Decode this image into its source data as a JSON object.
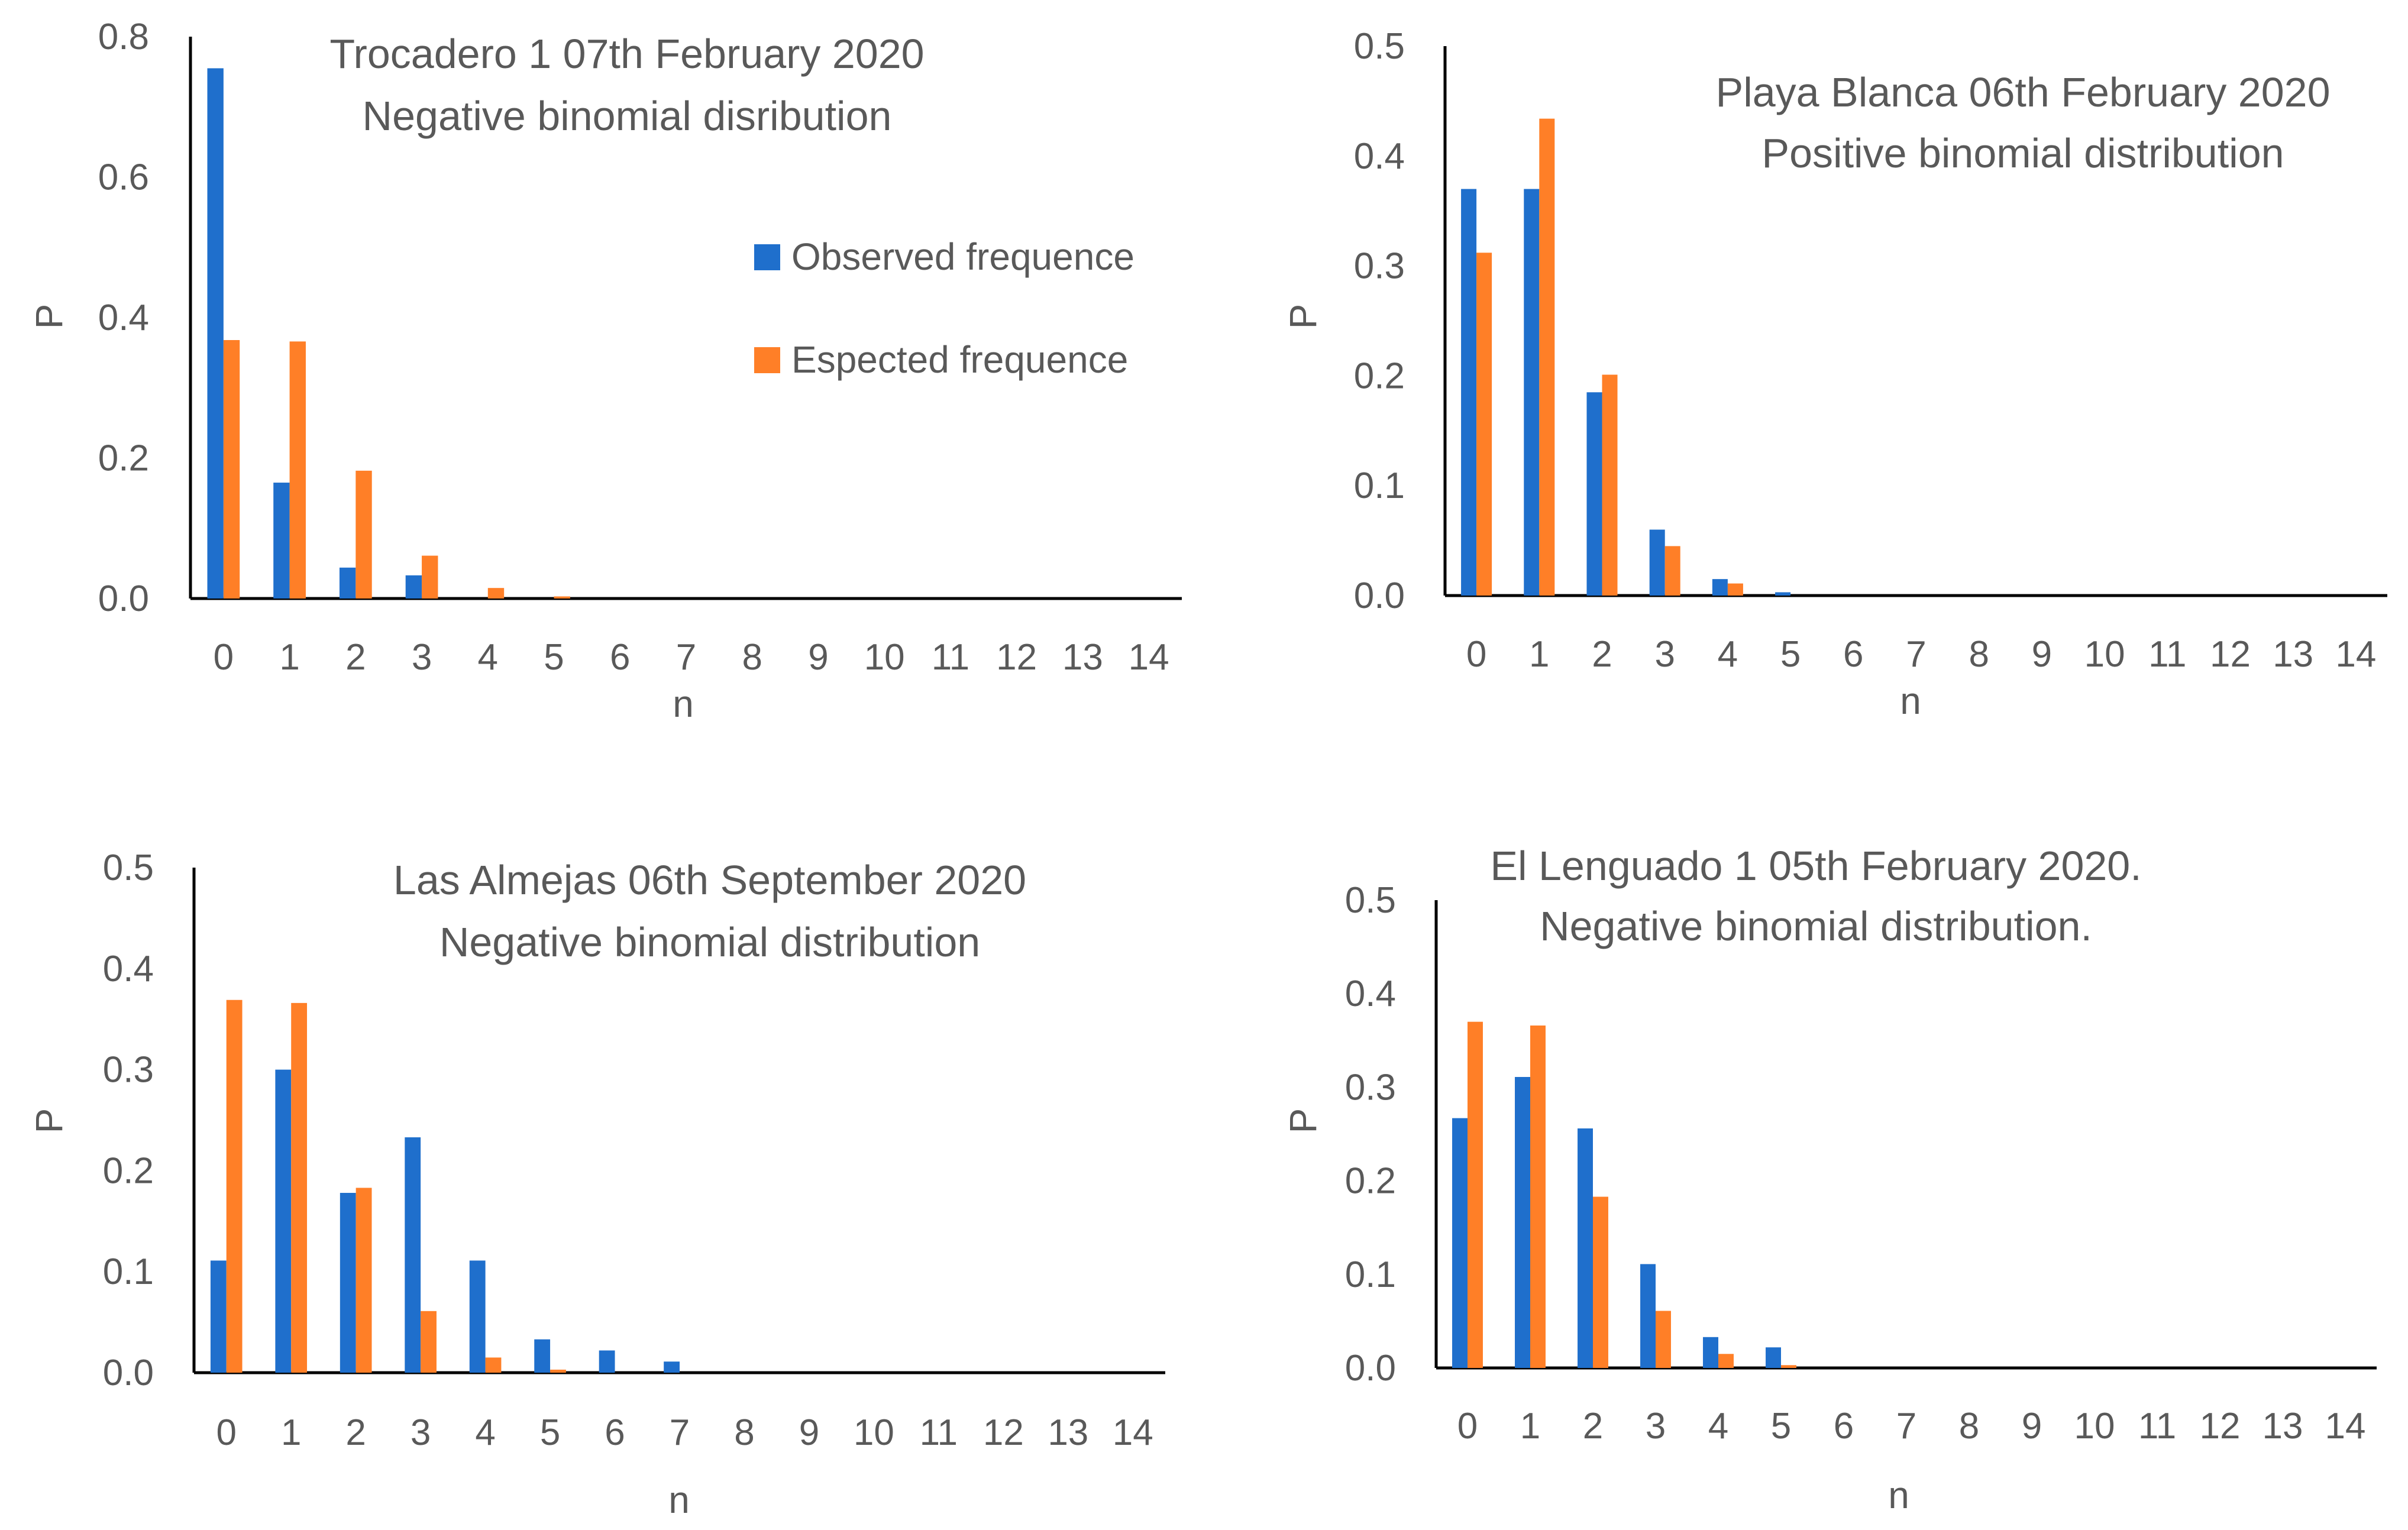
{
  "colors": {
    "observed": "#1f6fcc",
    "expected": "#ff7f27",
    "axis": "#000000",
    "text": "#595959"
  },
  "legend": {
    "observed": "Observed frequence",
    "expected": "Espected frequence"
  },
  "chart_data": [
    {
      "type": "bar",
      "title": [
        "Trocadero 1 07th February 2020",
        "Negative binomial disribution"
      ],
      "xlabel": "n",
      "ylabel": "P",
      "ylim": [
        0,
        0.8
      ],
      "yticks": [
        "0.0",
        "0.2",
        "0.4",
        "0.6",
        "0.8"
      ],
      "categories": [
        "0",
        "1",
        "2",
        "3",
        "4",
        "5",
        "6",
        "7",
        "8",
        "9",
        "10",
        "11",
        "12",
        "13",
        "14"
      ],
      "series": [
        {
          "name": "Observed frequence",
          "values": [
            0.755,
            0.165,
            0.044,
            0.033,
            0,
            0,
            0,
            0,
            0,
            0,
            0,
            0,
            0,
            0,
            0
          ]
        },
        {
          "name": "Espected frequence",
          "values": [
            0.368,
            0.366,
            0.182,
            0.061,
            0.015,
            0.003,
            0,
            0,
            0,
            0,
            0,
            0,
            0,
            0,
            0
          ]
        }
      ],
      "legend_position": "top-right"
    },
    {
      "type": "bar",
      "title": [
        "Playa Blanca 06th February 2020",
        "Positive binomial distribution"
      ],
      "xlabel": "n",
      "ylabel": "P",
      "ylim": [
        0,
        0.5
      ],
      "yticks": [
        "0.0",
        "0.1",
        "0.2",
        "0.3",
        "0.4",
        "0.5"
      ],
      "categories": [
        "0",
        "1",
        "2",
        "3",
        "4",
        "5",
        "6",
        "7",
        "8",
        "9",
        "10",
        "11",
        "12",
        "13",
        "14"
      ],
      "series": [
        {
          "name": "Observed frequence",
          "values": [
            0.37,
            0.37,
            0.185,
            0.06,
            0.015,
            0.003,
            0,
            0,
            0,
            0,
            0,
            0,
            0,
            0,
            0
          ]
        },
        {
          "name": "Espected frequence",
          "values": [
            0.312,
            0.434,
            0.201,
            0.045,
            0.011,
            0,
            0,
            0,
            0,
            0,
            0,
            0,
            0,
            0,
            0
          ]
        }
      ]
    },
    {
      "type": "bar",
      "title": [
        "Las Almejas 06th September 2020",
        "Negative binomial distribution"
      ],
      "xlabel": "n",
      "ylabel": "P",
      "ylim": [
        0,
        0.5
      ],
      "yticks": [
        "0.0",
        "0.1",
        "0.2",
        "0.3",
        "0.4",
        "0.5"
      ],
      "categories": [
        "0",
        "1",
        "2",
        "3",
        "4",
        "5",
        "6",
        "7",
        "8",
        "9",
        "10",
        "11",
        "12",
        "13",
        "14"
      ],
      "series": [
        {
          "name": "Observed frequence",
          "values": [
            0.111,
            0.3,
            0.178,
            0.233,
            0.111,
            0.033,
            0.022,
            0.011,
            0,
            0,
            0,
            0,
            0,
            0,
            0
          ]
        },
        {
          "name": "Espected frequence",
          "values": [
            0.369,
            0.366,
            0.183,
            0.061,
            0.015,
            0.003,
            0,
            0,
            0,
            0,
            0,
            0,
            0,
            0,
            0
          ]
        }
      ]
    },
    {
      "type": "bar",
      "title": [
        "El Lenguado 1 05th February 2020.",
        "Negative binomial distribution."
      ],
      "xlabel": "n",
      "ylabel": "P",
      "ylim": [
        0,
        0.5
      ],
      "yticks": [
        "0.0",
        "0.1",
        "0.2",
        "0.3",
        "0.4",
        "0.5"
      ],
      "categories": [
        "0",
        "1",
        "2",
        "3",
        "4",
        "5",
        "6",
        "7",
        "8",
        "9",
        "10",
        "11",
        "12",
        "13",
        "14"
      ],
      "series": [
        {
          "name": "Observed frequence",
          "values": [
            0.267,
            0.311,
            0.256,
            0.111,
            0.033,
            0.022,
            0,
            0,
            0,
            0,
            0,
            0,
            0,
            0,
            0
          ]
        },
        {
          "name": "Espected frequence",
          "values": [
            0.37,
            0.366,
            0.183,
            0.061,
            0.015,
            0.003,
            0,
            0,
            0,
            0,
            0,
            0,
            0,
            0,
            0
          ]
        }
      ]
    }
  ]
}
